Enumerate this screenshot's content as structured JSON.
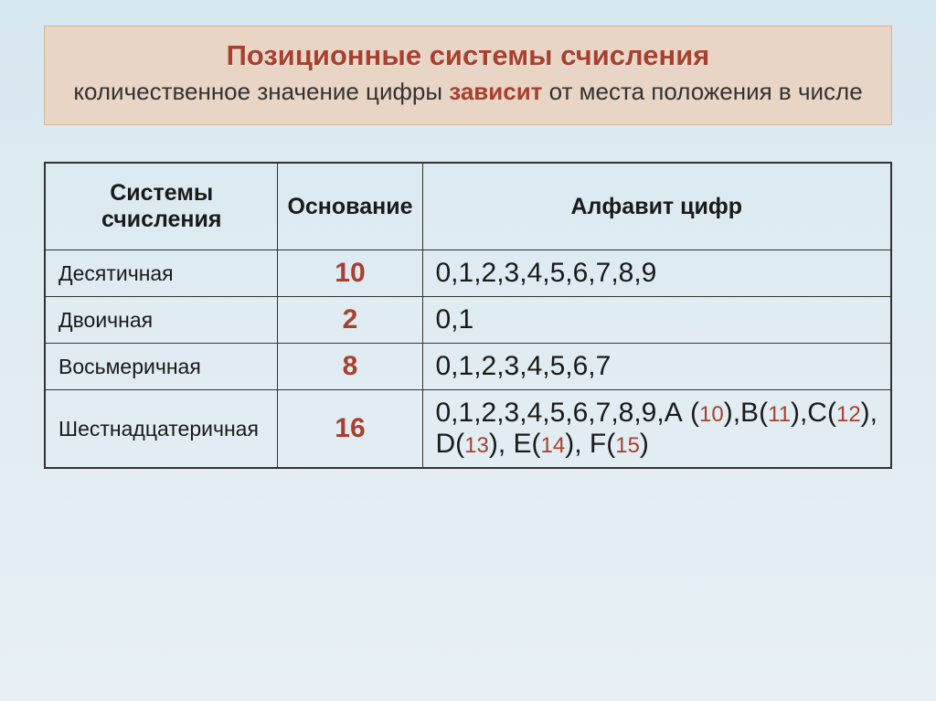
{
  "header": {
    "title": "Позиционные системы счисления",
    "subtitle_before": "количественное значение цифры ",
    "subtitle_highlight": "зависит",
    "subtitle_after": " от места положения в числе"
  },
  "table": {
    "headers": {
      "col1": "Системы счисления",
      "col2": "Основание",
      "col3": "Алфавит цифр"
    },
    "rows": [
      {
        "name": "Десятичная",
        "base": "10",
        "alphabet": "0,1,2,3,4,5,6,7,8,9"
      },
      {
        "name": "Двоичная",
        "base": "2",
        "alphabet": "0,1"
      },
      {
        "name": "Восьмеричная",
        "base": "8",
        "alphabet": "0,1,2,3,4,5,6,7"
      },
      {
        "name": "Шестнадцатеричная",
        "base": "16"
      }
    ],
    "hexRow": {
      "prefix": "0,1,2,3,4,5,6,7,8,9,A (",
      "v10": "10",
      "afterA": "),B(",
      "v11": "11",
      "afterB": "),C(",
      "v12": "12",
      "afterC": "), D(",
      "v13": "13",
      "afterD": "), E(",
      "v14": "14",
      "afterE": "), F(",
      "v15": "15",
      "afterF": ")"
    }
  },
  "colors": {
    "accent": "#a84030",
    "headerBg": "#e8d5c5",
    "headerBorder": "#d4b896",
    "text": "#1a1a1a",
    "border": "#333333",
    "bgTop": "#d8e8f0",
    "bgBottom": "#e8f0f5"
  }
}
